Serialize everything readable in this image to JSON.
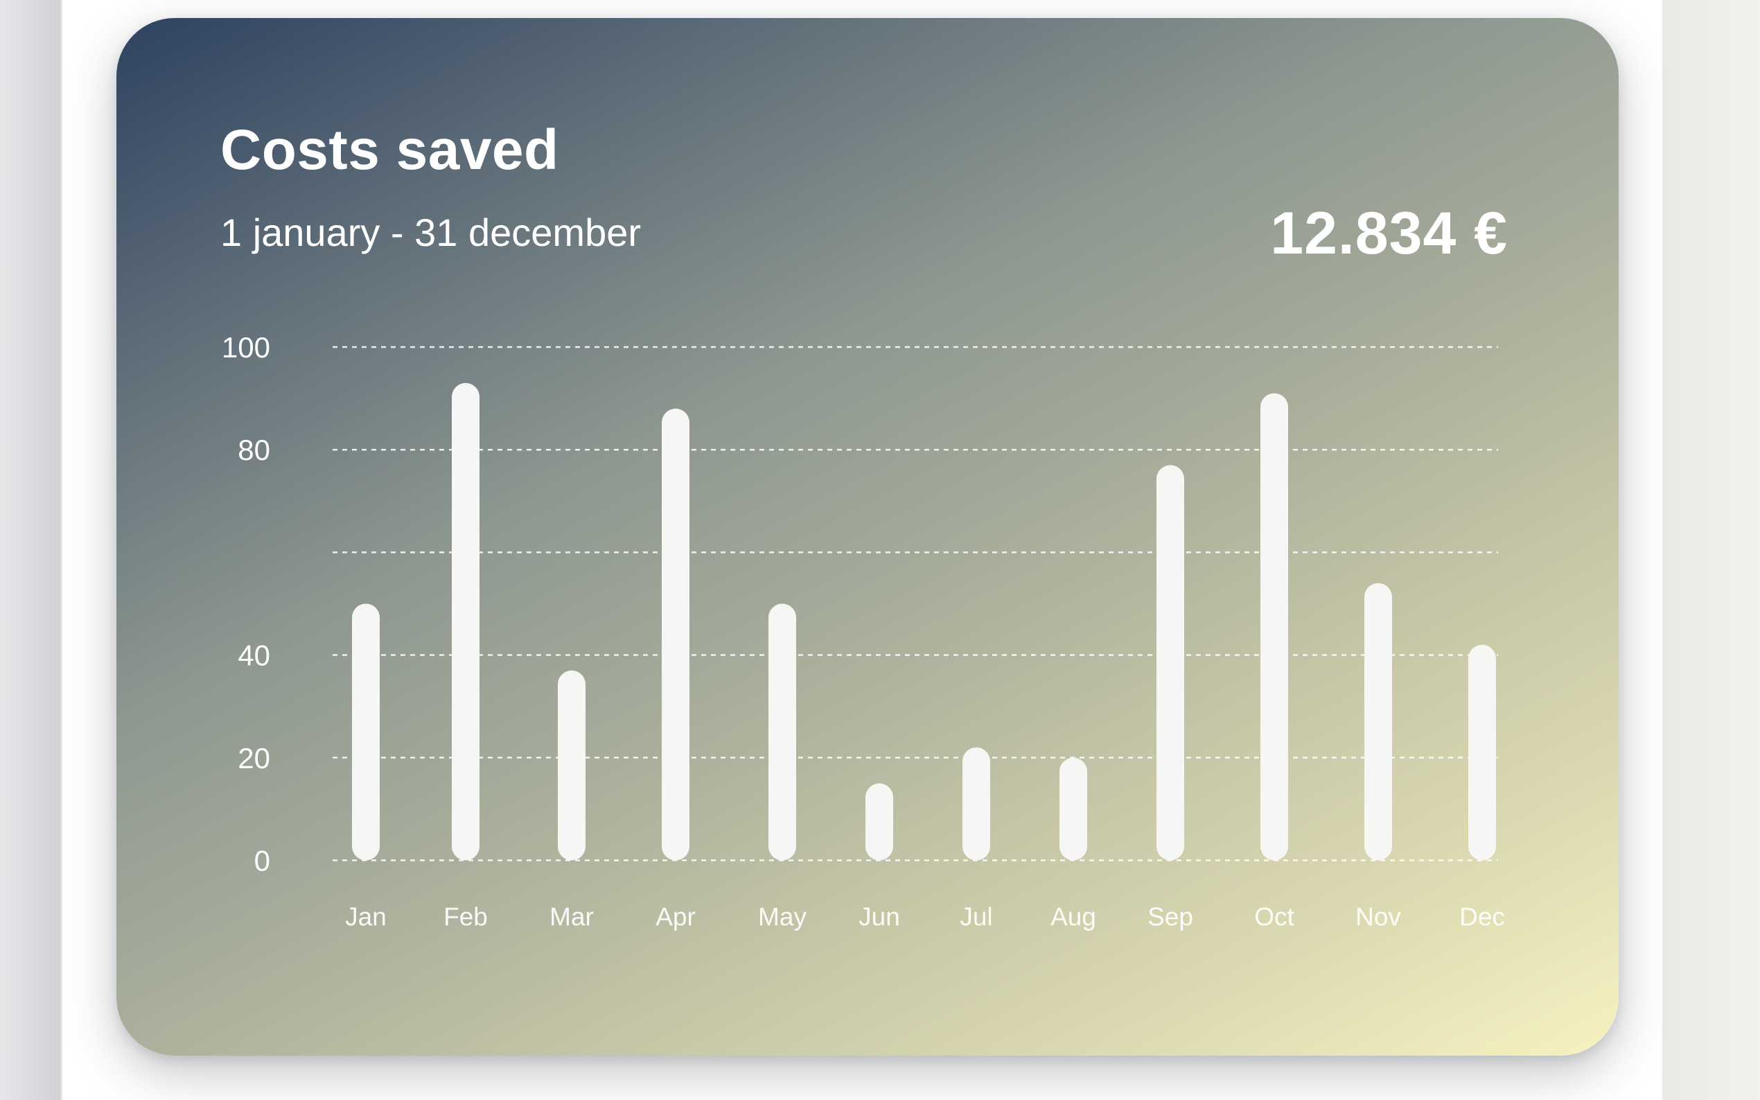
{
  "card": {
    "title": "Costs saved",
    "date_range": "1 january - 31 december",
    "total": "12.834 €"
  },
  "chart_data": {
    "type": "bar",
    "categories": [
      "Jan",
      "Feb",
      "Mar",
      "Apr",
      "May",
      "Jun",
      "Jul",
      "Aug",
      "Sep",
      "Oct",
      "Nov",
      "Dec"
    ],
    "values": [
      50,
      93,
      37,
      88,
      50,
      15,
      22,
      20,
      77,
      91,
      54,
      42
    ],
    "yticks": [
      0,
      20,
      40,
      80,
      100
    ],
    "ylim": [
      0,
      100
    ],
    "grid": true,
    "bar_color": "#f6f6f4",
    "title": "Costs saved",
    "subtitle": "1 january - 31 december"
  },
  "colors": {
    "gradient_start": "#2e4260",
    "gradient_end": "#f6f2c0",
    "text": "#ffffff"
  }
}
